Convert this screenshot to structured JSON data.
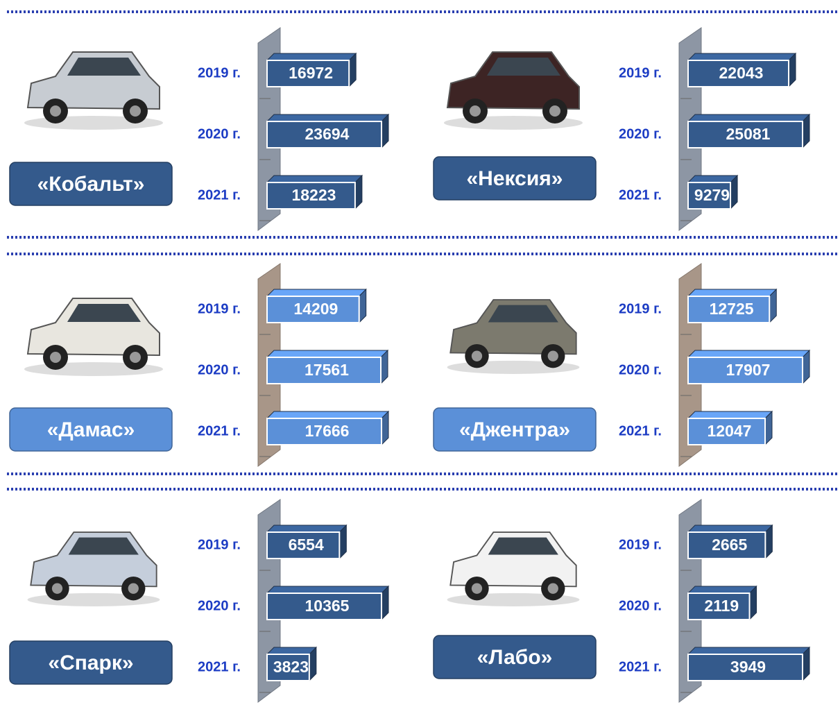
{
  "chart_data": [
    {
      "type": "bar",
      "title": "«Кобальт»",
      "categories": [
        "2019 г.",
        "2020 г.",
        "2021 г."
      ],
      "values": [
        16972,
        23694,
        18223
      ],
      "color": "#345a8c"
    },
    {
      "type": "bar",
      "title": "«Нексия»",
      "categories": [
        "2019 г.",
        "2020 г.",
        "2021 г."
      ],
      "values": [
        22043,
        25081,
        9279
      ],
      "color": "#345a8c"
    },
    {
      "type": "bar",
      "title": "«Дамас»",
      "categories": [
        "2019 г.",
        "2020 г.",
        "2021 г."
      ],
      "values": [
        14209,
        17561,
        17666
      ],
      "color": "#5b90d8"
    },
    {
      "type": "bar",
      "title": "«Джентра»",
      "categories": [
        "2019 г.",
        "2020 г.",
        "2021 г."
      ],
      "values": [
        12725,
        17907,
        12047
      ],
      "color": "#5b90d8"
    },
    {
      "type": "bar",
      "title": "«Спарк»",
      "categories": [
        "2019 г.",
        "2020 г.",
        "2021 г."
      ],
      "values": [
        6554,
        10365,
        3823
      ],
      "color": "#345a8c"
    },
    {
      "type": "bar",
      "title": "«Лабо»",
      "categories": [
        "2019 г.",
        "2020 г.",
        "2021 г."
      ],
      "values": [
        2665,
        2119,
        3949
      ],
      "color": "#345a8c"
    }
  ]
}
